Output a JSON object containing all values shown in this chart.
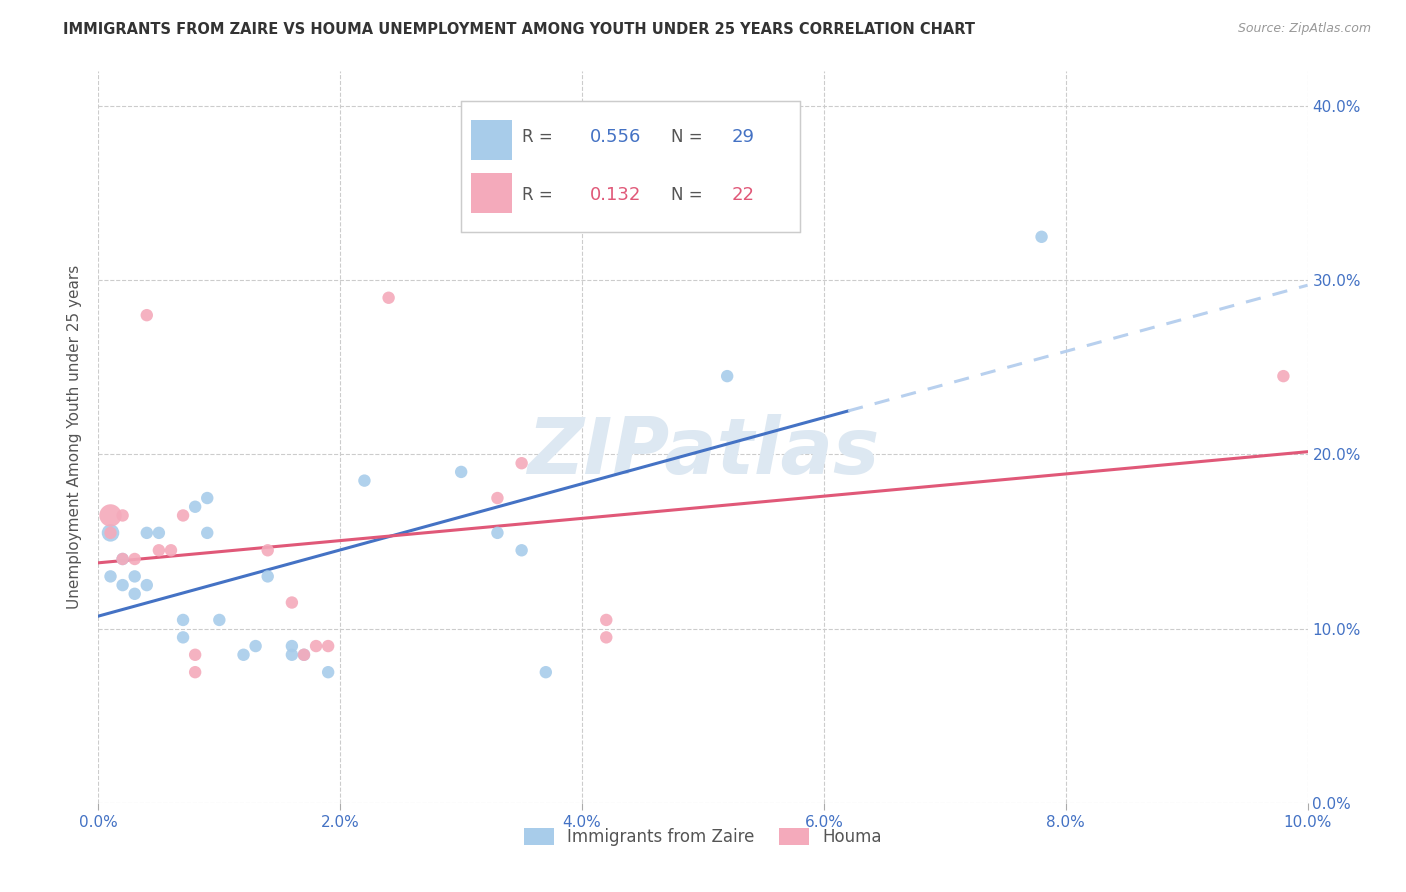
{
  "title": "IMMIGRANTS FROM ZAIRE VS HOUMA UNEMPLOYMENT AMONG YOUTH UNDER 25 YEARS CORRELATION CHART",
  "source": "Source: ZipAtlas.com",
  "ylabel": "Unemployment Among Youth under 25 years",
  "legend_label1": "Immigrants from Zaire",
  "legend_label2": "Houma",
  "R1": 0.556,
  "N1": 29,
  "R2": 0.132,
  "N2": 22,
  "xlim": [
    0.0,
    0.1
  ],
  "ylim": [
    0.0,
    0.42
  ],
  "xticks": [
    0.0,
    0.02,
    0.04,
    0.06,
    0.08,
    0.1
  ],
  "yticks": [
    0.0,
    0.1,
    0.2,
    0.3,
    0.4
  ],
  "color_blue": "#A8CCEA",
  "color_pink": "#F4AABB",
  "line_blue": "#4472C4",
  "line_pink": "#E05878",
  "line_dash_color": "#B8D0EE",
  "background": "#FFFFFF",
  "blue_points": [
    [
      0.001,
      0.155
    ],
    [
      0.001,
      0.13
    ],
    [
      0.002,
      0.14
    ],
    [
      0.002,
      0.125
    ],
    [
      0.003,
      0.13
    ],
    [
      0.003,
      0.12
    ],
    [
      0.004,
      0.155
    ],
    [
      0.004,
      0.125
    ],
    [
      0.005,
      0.155
    ],
    [
      0.007,
      0.105
    ],
    [
      0.007,
      0.095
    ],
    [
      0.008,
      0.17
    ],
    [
      0.009,
      0.175
    ],
    [
      0.009,
      0.155
    ],
    [
      0.01,
      0.105
    ],
    [
      0.012,
      0.085
    ],
    [
      0.013,
      0.09
    ],
    [
      0.014,
      0.13
    ],
    [
      0.016,
      0.085
    ],
    [
      0.016,
      0.09
    ],
    [
      0.017,
      0.085
    ],
    [
      0.019,
      0.075
    ],
    [
      0.022,
      0.185
    ],
    [
      0.03,
      0.19
    ],
    [
      0.033,
      0.155
    ],
    [
      0.035,
      0.145
    ],
    [
      0.037,
      0.075
    ],
    [
      0.052,
      0.245
    ],
    [
      0.078,
      0.325
    ]
  ],
  "blue_sizes": [
    160,
    80,
    80,
    80,
    80,
    80,
    80,
    80,
    80,
    80,
    80,
    80,
    80,
    80,
    80,
    80,
    80,
    80,
    80,
    80,
    80,
    80,
    80,
    80,
    80,
    80,
    80,
    80,
    80
  ],
  "pink_points": [
    [
      0.001,
      0.165
    ],
    [
      0.001,
      0.155
    ],
    [
      0.002,
      0.165
    ],
    [
      0.002,
      0.14
    ],
    [
      0.003,
      0.14
    ],
    [
      0.004,
      0.28
    ],
    [
      0.005,
      0.145
    ],
    [
      0.006,
      0.145
    ],
    [
      0.007,
      0.165
    ],
    [
      0.008,
      0.085
    ],
    [
      0.008,
      0.075
    ],
    [
      0.014,
      0.145
    ],
    [
      0.016,
      0.115
    ],
    [
      0.017,
      0.085
    ],
    [
      0.018,
      0.09
    ],
    [
      0.019,
      0.09
    ],
    [
      0.024,
      0.29
    ],
    [
      0.033,
      0.175
    ],
    [
      0.035,
      0.195
    ],
    [
      0.042,
      0.105
    ],
    [
      0.042,
      0.095
    ],
    [
      0.098,
      0.245
    ]
  ],
  "pink_sizes": [
    260,
    80,
    80,
    80,
    80,
    80,
    80,
    80,
    80,
    80,
    80,
    80,
    80,
    80,
    80,
    80,
    80,
    80,
    80,
    80,
    80,
    80
  ]
}
